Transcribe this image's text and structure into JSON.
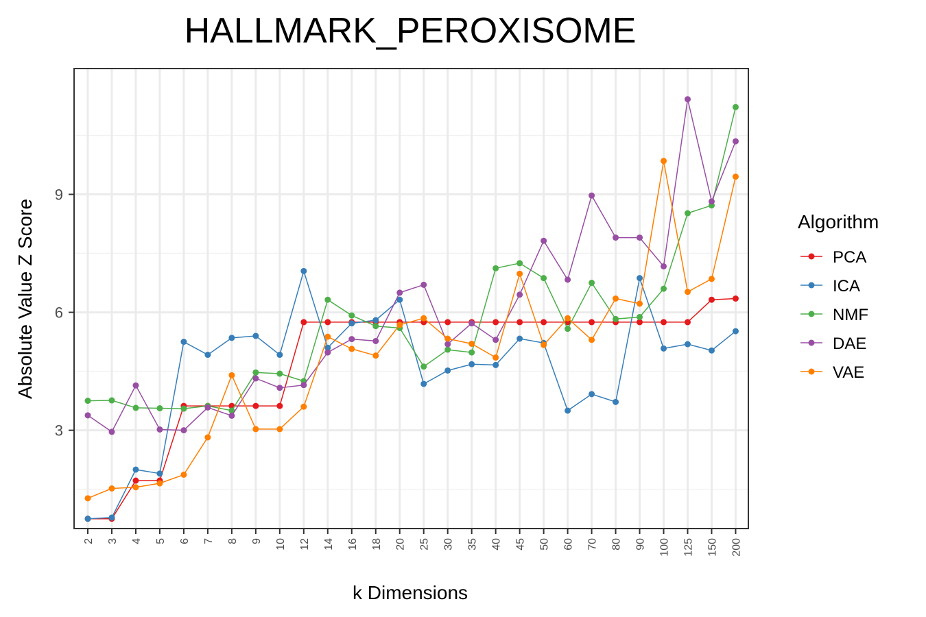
{
  "chart_data": {
    "type": "line",
    "title": "HALLMARK_PEROXISOME",
    "xlabel": "k Dimensions",
    "ylabel": "Absolute Value Z Score",
    "categories": [
      "2",
      "3",
      "4",
      "5",
      "6",
      "7",
      "8",
      "9",
      "10",
      "12",
      "14",
      "16",
      "18",
      "20",
      "25",
      "30",
      "35",
      "40",
      "45",
      "50",
      "60",
      "70",
      "80",
      "90",
      "100",
      "125",
      "150",
      "200"
    ],
    "yticks": [
      3,
      6,
      9
    ],
    "ylim": [
      0.5,
      12.2
    ],
    "grid": true,
    "legend": {
      "title": "Algorithm",
      "position": "right"
    },
    "series": [
      {
        "name": "PCA",
        "color": "#e41a1c",
        "values": [
          0.75,
          0.75,
          1.72,
          1.72,
          3.62,
          3.62,
          3.62,
          3.62,
          3.62,
          5.75,
          5.75,
          5.75,
          5.75,
          5.75,
          5.75,
          5.75,
          5.75,
          5.75,
          5.75,
          5.75,
          5.75,
          5.75,
          5.75,
          5.75,
          5.75,
          5.75,
          6.32,
          6.35
        ]
      },
      {
        "name": "ICA",
        "color": "#377eb8",
        "values": [
          0.75,
          0.78,
          2.0,
          1.9,
          5.25,
          4.92,
          5.35,
          5.4,
          4.92,
          7.05,
          5.1,
          5.72,
          5.8,
          6.32,
          4.18,
          4.52,
          4.68,
          4.66,
          5.33,
          5.22,
          3.5,
          3.92,
          3.72,
          6.87,
          5.08,
          5.19,
          5.03,
          5.52
        ]
      },
      {
        "name": "NMF",
        "color": "#4daf4a",
        "values": [
          3.75,
          3.76,
          3.57,
          3.56,
          3.55,
          3.62,
          3.5,
          4.47,
          4.44,
          4.25,
          6.32,
          5.92,
          5.65,
          5.6,
          4.62,
          5.05,
          4.98,
          7.12,
          7.25,
          6.87,
          5.58,
          6.75,
          5.83,
          5.88,
          6.6,
          8.52,
          8.72,
          11.22
        ]
      },
      {
        "name": "DAE",
        "color": "#984ea3",
        "values": [
          3.38,
          2.96,
          4.14,
          3.02,
          3.0,
          3.58,
          3.37,
          4.32,
          4.08,
          4.15,
          4.98,
          5.32,
          5.27,
          6.5,
          6.7,
          5.19,
          5.72,
          5.3,
          6.45,
          7.82,
          6.83,
          8.97,
          7.9,
          7.9,
          7.17,
          11.42,
          8.82,
          10.35
        ]
      },
      {
        "name": "VAE",
        "color": "#ff7f00",
        "values": [
          1.27,
          1.52,
          1.55,
          1.65,
          1.87,
          2.82,
          4.4,
          3.03,
          3.03,
          3.6,
          5.38,
          5.07,
          4.9,
          5.68,
          5.85,
          5.33,
          5.2,
          4.85,
          6.98,
          5.17,
          5.85,
          5.3,
          6.35,
          6.22,
          9.85,
          6.52,
          6.85,
          9.45
        ]
      }
    ]
  }
}
